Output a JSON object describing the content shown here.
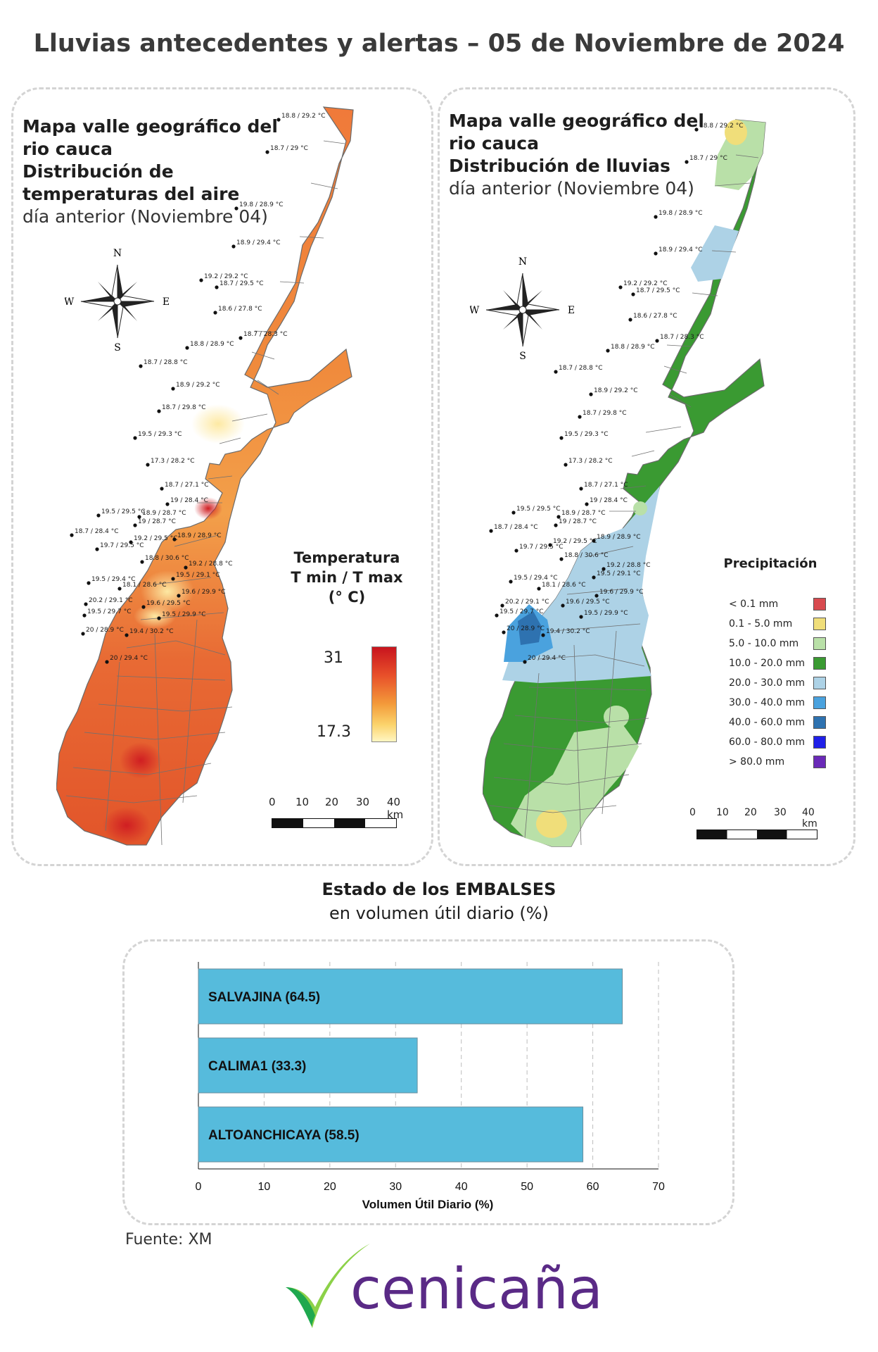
{
  "title": "Lluvias antecedentes y alertas – 05 de Noviembre de 2024",
  "temperature_map": {
    "title_lines": [
      "Mapa valle geográfico del",
      "rio cauca",
      "Distribución de",
      "temperaturas del aire"
    ],
    "subtitle": "día anterior (Noviembre 04)",
    "legend": {
      "title_line1": "Temperatura",
      "title_line2": "T min / T max",
      "title_line3": "(° C)",
      "max_label": "31",
      "min_label": "17.3",
      "ramp_colors": [
        "#c8141e",
        "#e8502a",
        "#f39a3a",
        "#fbd36b",
        "#fff6c2"
      ]
    }
  },
  "rain_map": {
    "title_lines": [
      "Mapa valle geográfico del",
      "rio cauca"
    ],
    "title_bold": "Distribución de lluvias",
    "subtitle": "día anterior (Noviembre 04)",
    "legend_title": "Precipitación",
    "legend": [
      {
        "label": "< 0.1 mm",
        "color": "#d84a4f"
      },
      {
        "label": "0.1 - 5.0 mm",
        "color": "#f0de7a"
      },
      {
        "label": "5.0 - 10.0 mm",
        "color": "#b9e0a8"
      },
      {
        "label": "10.0 - 20.0 mm",
        "color": "#3a9a32"
      },
      {
        "label": "20.0 - 30.0 mm",
        "color": "#add2e6"
      },
      {
        "label": "30.0 - 40.0 mm",
        "color": "#4aa2de"
      },
      {
        "label": "40.0 - 60.0 mm",
        "color": "#2e72b0"
      },
      {
        "label": "60.0 - 80.0 mm",
        "color": "#2020e8"
      },
      {
        "label": "> 80.0 mm",
        "color": "#6a2ab8"
      }
    ]
  },
  "compass": {
    "n": "N",
    "s": "S",
    "e": "E",
    "w": "W"
  },
  "scale_bar": {
    "labels": [
      "0",
      "10",
      "20",
      "30",
      "40 km"
    ]
  },
  "stations": [
    "18.8 / 29.2 °C",
    "18.7 / 29 °C",
    "19.8 / 28.9 °C",
    "18.9 / 29.4 °C",
    "19.2 / 29.2 °C",
    "18.7 / 29.5 °C",
    "18.6 / 27.8 °C",
    "18.7 / 28.3 °C",
    "18.8 / 28.9 °C",
    "18.7 / 28.8 °C",
    "18.9 / 29.2 °C",
    "18.7 / 29.8 °C",
    "19.5 / 29.3 °C",
    "17.3 / 28.2 °C",
    "18.7 / 27.1 °C",
    "19 / 28.4 °C",
    "19.5 / 29.5 °C",
    "18.9 / 28.7 °C",
    "18.7 / 28.4 °C",
    "19 / 28.7 °C",
    "19.2 / 29.5 °C",
    "18.9 / 28.9 °C",
    "19.7 / 29.5 °C",
    "18.8 / 30.6 °C",
    "19.2 / 28.8 °C",
    "19.5 / 29.4 °C",
    "19.5 / 29.1 °C",
    "18.1 / 28.6 °C",
    "19.6 / 29.9 °C",
    "20.2 / 29.1 °C",
    "19.6 / 29.5 °C",
    "19.5 / 29.7 °C",
    "19.5 / 29.9 °C",
    "20 / 28.9 °C",
    "19.4 / 30.2 °C",
    "20 / 29.4 °C"
  ],
  "reservoirs": {
    "heading_bold": "Estado de los EMBALSES",
    "heading_normal": "en volumen útil diario (%)"
  },
  "chart_data": {
    "type": "bar",
    "orientation": "horizontal",
    "categories": [
      "SALVAJINA (64.5)",
      "CALIMA1 (33.3)",
      "ALTOANCHICAYA (58.5)"
    ],
    "values": [
      64.5,
      33.3,
      58.5
    ],
    "xlabel": "Volumen Útil Diario (%)",
    "xlim": [
      0,
      70
    ],
    "xticks": [
      "0",
      "10",
      "20",
      "30",
      "40",
      "50",
      "60",
      "70"
    ],
    "grid": "vertical dashed",
    "bar_color": "#56bbdc"
  },
  "source": "Fuente: XM",
  "logo": {
    "text": "cenicaña",
    "check_colors": [
      "#1fa84f",
      "#8cd148"
    ]
  }
}
